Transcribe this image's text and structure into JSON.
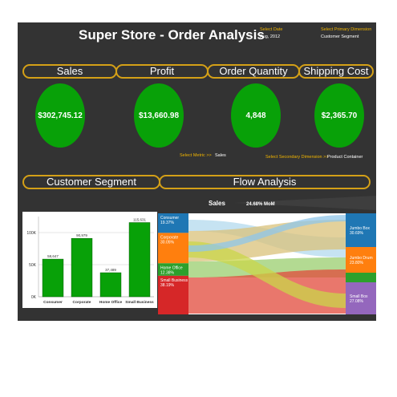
{
  "header": {
    "title": "Super Store - Order Analysis",
    "select_date_label": "Select Date",
    "select_date_value": "Aug, 2012",
    "select_primary_label": "Select Primary Dimension",
    "select_primary_value": "Customer Segment"
  },
  "kpis": [
    {
      "label": "Sales",
      "value": "$302,745.12"
    },
    {
      "label": "Profit",
      "value": "$13,660.98"
    },
    {
      "label": "Order Quantity",
      "value": "4,848"
    },
    {
      "label": "Shipping Cost",
      "value": "$2,365.70"
    }
  ],
  "selectors": {
    "metric_label": "Select Metric >>",
    "metric_value": "Sales",
    "secondary_label": "Select Secondary Dimension >>",
    "secondary_value": "Product Container"
  },
  "sections": {
    "segment": "Customer Segment",
    "flow": "Flow Analysis"
  },
  "flow": {
    "metric": "Sales",
    "mom": "24.68% MoM",
    "left": [
      {
        "name": "Consumer",
        "pct": "19.37%",
        "color": "#1f77b4"
      },
      {
        "name": "Corporate",
        "pct": "30.05%",
        "color": "#ff7f0e"
      },
      {
        "name": "Home Office",
        "pct": "12.38%",
        "color": "#2ca02c"
      },
      {
        "name": "Small Business",
        "pct": "38.19%",
        "color": "#d62728"
      }
    ],
    "right": [
      {
        "name": "Jumbo Box",
        "pct": "30.69%",
        "color": "#1f77b4"
      },
      {
        "name": "Jumbo Drum",
        "pct": "23.80%",
        "color": "#ff7f0e"
      },
      {
        "name": "Small Box",
        "pct": "27.08%",
        "color": "#9467bd"
      }
    ]
  },
  "chart_data": {
    "type": "bar",
    "categories": [
      "Consumer",
      "Corporate",
      "Home Office",
      "Small Business"
    ],
    "values": [
      58647,
      90979,
      37489,
      115631
    ],
    "data_labels": [
      "58,647",
      "90,979",
      "37,489",
      "115,631"
    ],
    "yticks": [
      "0K",
      "50K",
      "100K"
    ],
    "ylim": [
      0,
      125000
    ],
    "bar_color": "#08a108",
    "grid": true
  }
}
